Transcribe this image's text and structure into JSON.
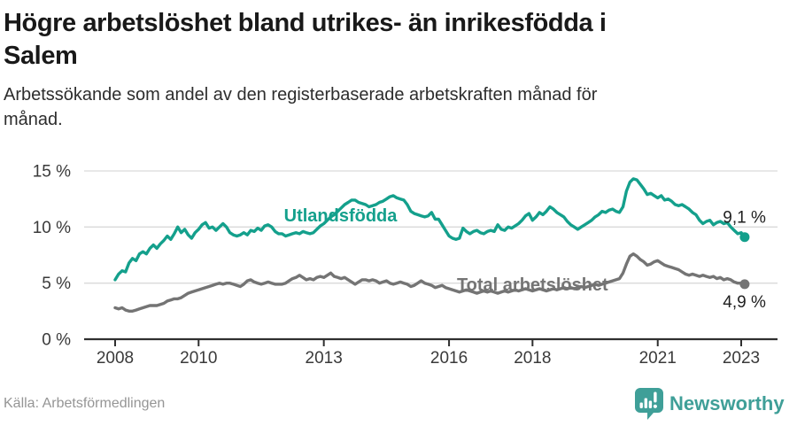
{
  "header": {
    "title_lines": [
      "Högre arbetslöshet bland utrikes- än inrikesfödda i",
      "Salem"
    ],
    "subtitle_lines": [
      "Arbetssökande som andel av den registerbaserade arbetskraften månad för",
      "månad."
    ]
  },
  "chart_data": {
    "type": "line",
    "title": "Högre arbetslöshet bland utrikes- än inrikesfödda i Salem",
    "subtitle": "Arbetssökande som andel av den registerbaserade arbetskraften månad för månad.",
    "unit": "%",
    "frequency": "monthly",
    "x_start_year": 2008,
    "x_end_label": "2023",
    "ylim": [
      0,
      15
    ],
    "grid": "horizontal",
    "legend_position": "inline-labels",
    "x_ticks": [
      {
        "value": 2008,
        "label": "2008"
      },
      {
        "value": 2010,
        "label": "2010"
      },
      {
        "value": 2013,
        "label": "2013"
      },
      {
        "value": 2016,
        "label": "2016"
      },
      {
        "value": 2018,
        "label": "2018"
      },
      {
        "value": 2021,
        "label": "2021"
      },
      {
        "value": 2023,
        "label": "2023"
      }
    ],
    "y_ticks": [
      {
        "value": 0,
        "label": "0 %"
      },
      {
        "value": 5,
        "label": "5 %"
      },
      {
        "value": 10,
        "label": "10 %"
      },
      {
        "value": 15,
        "label": "15 %"
      }
    ],
    "colors": {
      "grid": "#d9d9d9",
      "axis": "#2f2f2f",
      "axis_text": "#3a3a3a",
      "value_text": "#1f1f1f",
      "teal": "#14a08c",
      "gray": "#747474"
    },
    "series": [
      {
        "name": "Utlandsfödda",
        "color": "#14a08c",
        "end_label": "9,1 %",
        "end_value": 9.1,
        "label": {
          "text": "Utlandsfödda",
          "x": 2013.4,
          "y": 10.5
        },
        "values": [
          5.3,
          5.8,
          6.1,
          6.0,
          6.8,
          7.2,
          7.0,
          7.6,
          7.8,
          7.6,
          8.1,
          8.4,
          8.1,
          8.5,
          8.8,
          9.2,
          8.9,
          9.4,
          10.0,
          9.5,
          9.8,
          9.3,
          9.0,
          9.5,
          9.8,
          10.2,
          10.4,
          9.9,
          10.0,
          9.7,
          10.0,
          10.3,
          10.0,
          9.5,
          9.3,
          9.2,
          9.3,
          9.5,
          9.3,
          9.7,
          9.6,
          9.9,
          9.7,
          10.1,
          10.2,
          10.0,
          9.6,
          9.4,
          9.4,
          9.2,
          9.3,
          9.4,
          9.5,
          9.4,
          9.6,
          9.5,
          9.4,
          9.5,
          9.8,
          10.1,
          10.3,
          10.6,
          10.9,
          11.1,
          11.4,
          11.7,
          12.0,
          12.2,
          12.4,
          12.4,
          12.2,
          12.1,
          12.0,
          11.8,
          11.9,
          12.0,
          12.2,
          12.3,
          12.5,
          12.7,
          12.8,
          12.6,
          12.5,
          12.4,
          12.0,
          11.4,
          11.2,
          11.1,
          11.0,
          10.9,
          11.0,
          11.3,
          10.7,
          10.7,
          10.2,
          9.7,
          9.2,
          9.0,
          8.9,
          9.0,
          9.9,
          9.6,
          9.4,
          9.6,
          9.7,
          9.5,
          9.4,
          9.6,
          9.7,
          9.6,
          10.2,
          9.8,
          9.7,
          10.0,
          9.9,
          10.1,
          10.3,
          10.6,
          11.0,
          11.2,
          10.6,
          10.9,
          11.3,
          11.1,
          11.4,
          11.8,
          11.6,
          11.3,
          11.1,
          10.9,
          10.5,
          10.2,
          10.0,
          9.8,
          10.0,
          10.2,
          10.4,
          10.6,
          10.9,
          11.1,
          11.4,
          11.3,
          11.5,
          11.6,
          11.4,
          11.3,
          11.8,
          13.2,
          14.0,
          14.3,
          14.2,
          13.8,
          13.4,
          12.9,
          13.0,
          12.8,
          12.6,
          12.8,
          12.4,
          12.5,
          12.3,
          12.0,
          11.9,
          12.0,
          11.8,
          11.6,
          11.3,
          11.1,
          10.6,
          10.3,
          10.5,
          10.6,
          10.2,
          10.4,
          10.5,
          10.3,
          10.4,
          10.0,
          9.7,
          9.4,
          9.5,
          9.1
        ]
      },
      {
        "name": "Total arbetslöshet",
        "color": "#747474",
        "end_label": "4,9 %",
        "end_value": 4.9,
        "label": {
          "text": "Total arbetslöshet",
          "x": 2018.0,
          "y": 4.35
        },
        "values": [
          2.8,
          2.7,
          2.8,
          2.6,
          2.5,
          2.5,
          2.6,
          2.7,
          2.8,
          2.9,
          3.0,
          3.0,
          3.0,
          3.1,
          3.2,
          3.4,
          3.5,
          3.6,
          3.6,
          3.7,
          3.9,
          4.1,
          4.2,
          4.3,
          4.4,
          4.5,
          4.6,
          4.7,
          4.8,
          4.9,
          5.0,
          4.9,
          5.0,
          5.0,
          4.9,
          4.8,
          4.7,
          4.9,
          5.2,
          5.3,
          5.1,
          5.0,
          4.9,
          5.0,
          5.1,
          5.0,
          4.9,
          4.9,
          4.9,
          5.0,
          5.2,
          5.4,
          5.5,
          5.7,
          5.5,
          5.3,
          5.4,
          5.3,
          5.5,
          5.6,
          5.5,
          5.7,
          5.9,
          5.6,
          5.5,
          5.4,
          5.5,
          5.3,
          5.1,
          4.9,
          5.1,
          5.3,
          5.3,
          5.2,
          5.3,
          5.2,
          5.0,
          5.1,
          5.2,
          5.0,
          4.9,
          5.0,
          5.1,
          5.0,
          4.9,
          4.7,
          4.8,
          5.0,
          5.2,
          5.0,
          4.9,
          4.8,
          4.6,
          4.7,
          4.8,
          4.6,
          4.5,
          4.4,
          4.3,
          4.2,
          4.3,
          4.4,
          4.3,
          4.2,
          4.1,
          4.2,
          4.3,
          4.2,
          4.3,
          4.2,
          4.1,
          4.2,
          4.3,
          4.2,
          4.3,
          4.4,
          4.3,
          4.4,
          4.5,
          4.4,
          4.3,
          4.4,
          4.5,
          4.4,
          4.3,
          4.4,
          4.5,
          4.4,
          4.5,
          4.6,
          4.5,
          4.6,
          4.5,
          4.6,
          4.7,
          4.6,
          4.7,
          4.8,
          4.9,
          4.8,
          4.9,
          5.0,
          5.1,
          5.2,
          5.3,
          5.4,
          5.9,
          6.7,
          7.4,
          7.6,
          7.4,
          7.1,
          6.9,
          6.6,
          6.7,
          6.9,
          7.0,
          6.8,
          6.6,
          6.5,
          6.4,
          6.3,
          6.2,
          6.0,
          5.8,
          5.7,
          5.8,
          5.7,
          5.6,
          5.7,
          5.6,
          5.5,
          5.6,
          5.4,
          5.5,
          5.3,
          5.4,
          5.3,
          5.1,
          5.0,
          5.0,
          4.9
        ]
      }
    ]
  },
  "footer": {
    "source": "Källa: Arbetsförmedlingen",
    "brand": "Newsworthy",
    "brand_color": "#3f9f98"
  }
}
